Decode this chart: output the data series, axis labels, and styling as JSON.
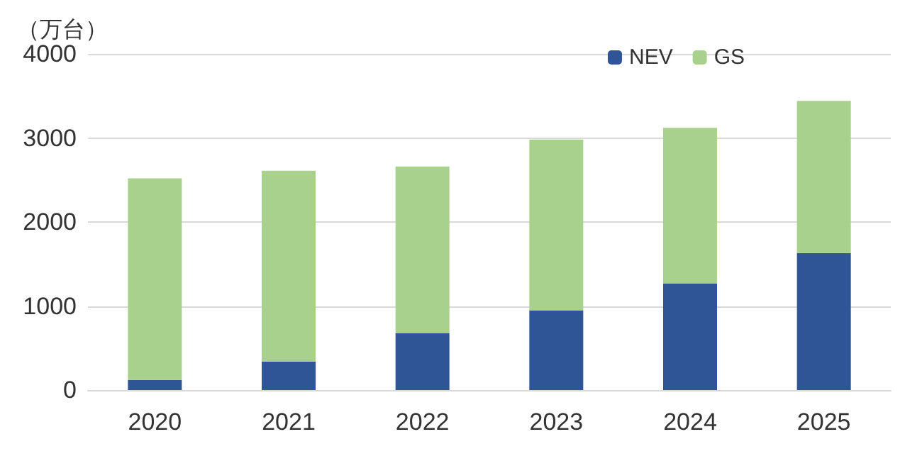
{
  "chart_data": {
    "type": "bar",
    "stacked": true,
    "ylabel": "（万台）",
    "categories": [
      "2020",
      "2021",
      "2022",
      "2023",
      "2024",
      "2025"
    ],
    "series": [
      {
        "name": "NEV",
        "color": "#2f5597",
        "values": [
          120,
          340,
          680,
          950,
          1270,
          1630
        ]
      },
      {
        "name": "GS",
        "color": "#a9d18e",
        "values": [
          2400,
          2270,
          1980,
          2030,
          1850,
          1810
        ]
      }
    ],
    "ylim": [
      0,
      4000
    ],
    "yticks": [
      0,
      1000,
      2000,
      3000,
      4000
    ],
    "grid": "y",
    "legend": "top"
  }
}
